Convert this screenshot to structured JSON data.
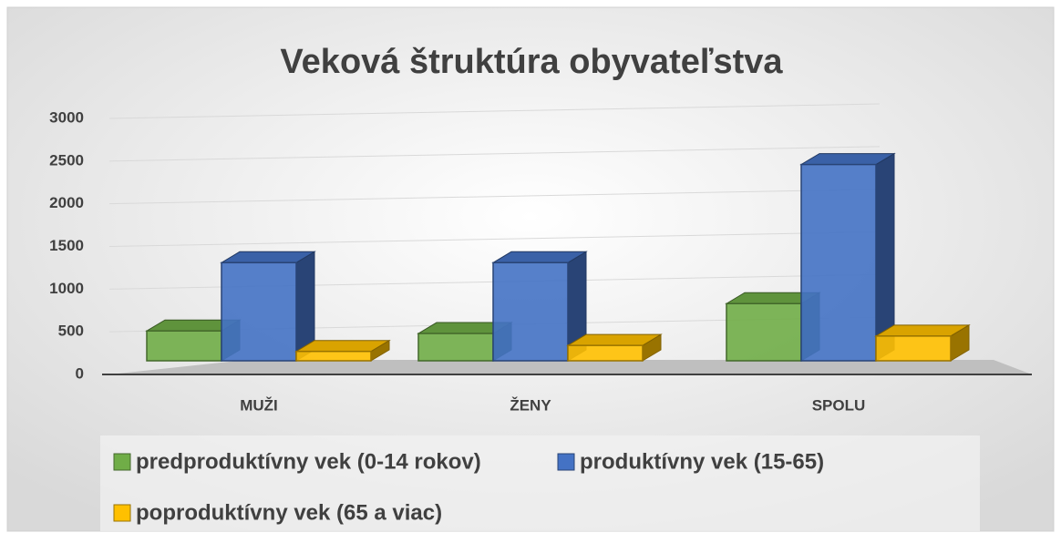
{
  "chart_data": {
    "type": "bar3d",
    "title": "Veková štruktúra obyvateľstva",
    "categories": [
      "MUŽI",
      "ŽENY",
      "SPOLU"
    ],
    "series": [
      {
        "name": "predproduktívny vek (0-14 rokov)",
        "color": "#70ad47",
        "values": [
          350,
          320,
          670
        ]
      },
      {
        "name": "produktívny vek (15-65)",
        "color": "#4472c4",
        "values": [
          1150,
          1150,
          2300
        ]
      },
      {
        "name": "poproduktívny vek (65 a viac)",
        "color": "#ffc000",
        "values": [
          110,
          180,
          290
        ]
      }
    ],
    "ylim": [
      0,
      3000
    ],
    "yticks": [
      0,
      500,
      1000,
      1500,
      2000,
      2500,
      3000
    ],
    "grid": true,
    "legend": "bottom"
  }
}
